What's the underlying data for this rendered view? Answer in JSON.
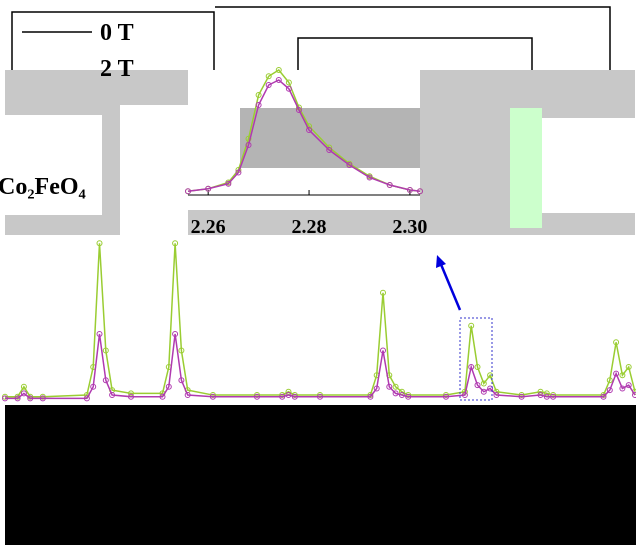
{
  "chart_data": [
    {
      "type": "line",
      "x": [
        0,
        2,
        3,
        4,
        6,
        13,
        14,
        15,
        16,
        17,
        20,
        25,
        26,
        27,
        28,
        29,
        33,
        40,
        44,
        45,
        46,
        50,
        58,
        59,
        60,
        61,
        62,
        63,
        64,
        70,
        73,
        74,
        75,
        76,
        77,
        78,
        82,
        85,
        86,
        87,
        95,
        96,
        97,
        98,
        99,
        100
      ],
      "xlim": [
        0,
        100
      ],
      "ylim": [
        0,
        100
      ],
      "series": [
        {
          "name": "0 T",
          "color": "#9acd32",
          "values": [
            2,
            2,
            8,
            2,
            2,
            3,
            20,
            95,
            30,
            6,
            4,
            4,
            20,
            95,
            30,
            6,
            3,
            3,
            3,
            5,
            3,
            3,
            3,
            15,
            65,
            15,
            8,
            5,
            3,
            3,
            5,
            45,
            20,
            10,
            15,
            5,
            3,
            5,
            4,
            3,
            3,
            12,
            35,
            15,
            20,
            5
          ]
        },
        {
          "name": "2 T",
          "color": "#b03ab0",
          "values": [
            1,
            1,
            4,
            1,
            1,
            1,
            8,
            40,
            12,
            3,
            2,
            2,
            8,
            40,
            12,
            3,
            2,
            2,
            2,
            3,
            2,
            2,
            2,
            7,
            30,
            8,
            4,
            3,
            2,
            2,
            3,
            20,
            9,
            5,
            7,
            3,
            2,
            3,
            2,
            2,
            2,
            6,
            16,
            7,
            9,
            3
          ]
        }
      ],
      "annotation": "Co₂FeO₄"
    },
    {
      "type": "line",
      "x": [
        2.256,
        2.26,
        2.264,
        2.266,
        2.268,
        2.27,
        2.272,
        2.274,
        2.276,
        2.278,
        2.28,
        2.284,
        2.288,
        2.292,
        2.296,
        2.3,
        2.302
      ],
      "xlim": [
        2.256,
        2.302
      ],
      "ylim": [
        0,
        100
      ],
      "xticks": [
        {
          "value": 2.26,
          "label": "2.26"
        },
        {
          "value": 2.28,
          "label": "2.28"
        },
        {
          "value": 2.3,
          "label": "2.30"
        }
      ],
      "series": [
        {
          "name": "0 T",
          "color": "#9acd32",
          "values": [
            3,
            5,
            10,
            20,
            45,
            80,
            95,
            100,
            90,
            70,
            55,
            38,
            25,
            15,
            8,
            4,
            3
          ]
        },
        {
          "name": "2 T",
          "color": "#b03ab0",
          "values": [
            3,
            5,
            9,
            18,
            40,
            72,
            88,
            92,
            85,
            68,
            52,
            36,
            24,
            14,
            8,
            4,
            3
          ]
        }
      ]
    }
  ]
}
